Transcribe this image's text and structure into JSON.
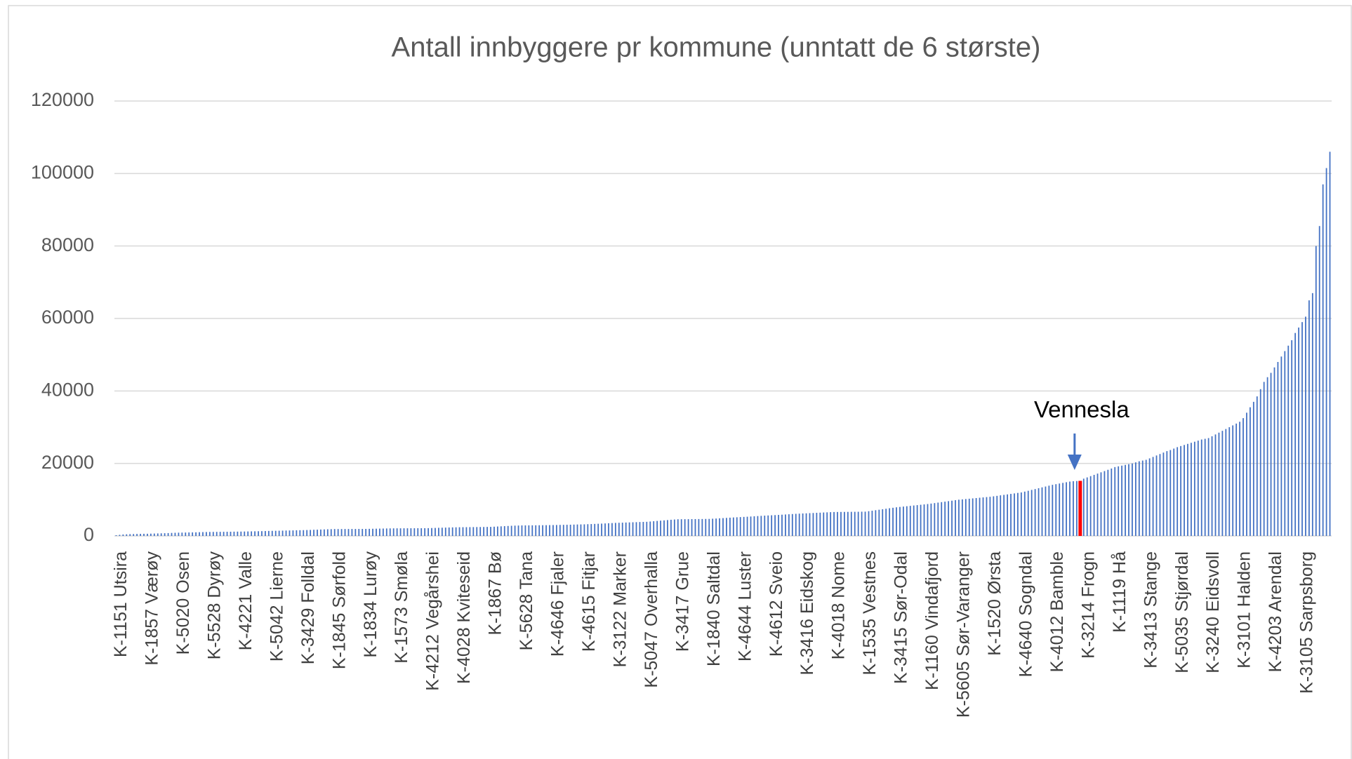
{
  "chart_data": {
    "type": "bar",
    "title": "Antall innbyggere pr kommune (unntatt de 6 største)",
    "color": "#4472c4",
    "grid": true,
    "ylim": [
      0,
      120000
    ],
    "yticks": [
      0,
      20000,
      40000,
      60000,
      80000,
      100000,
      120000
    ],
    "annotation": {
      "text": "Vennesla",
      "index": 278,
      "color": "#ff0000",
      "arrow_color": "#4472c4"
    },
    "categories": [
      "K-1151 Utsira",
      null,
      null,
      null,
      null,
      null,
      null,
      null,
      null,
      "K-1857 Værøy",
      null,
      null,
      null,
      null,
      null,
      null,
      null,
      null,
      "K-5020 Osen",
      null,
      null,
      null,
      null,
      null,
      null,
      null,
      null,
      "K-5528 Dyrøy",
      null,
      null,
      null,
      null,
      null,
      null,
      null,
      null,
      "K-4221 Valle",
      null,
      null,
      null,
      null,
      null,
      null,
      null,
      null,
      "K-5042 Lierne",
      null,
      null,
      null,
      null,
      null,
      null,
      null,
      null,
      "K-3429 Folldal",
      null,
      null,
      null,
      null,
      null,
      null,
      null,
      null,
      "K-1845 Sørfold",
      null,
      null,
      null,
      null,
      null,
      null,
      null,
      null,
      "K-1834 Lurøy",
      null,
      null,
      null,
      null,
      null,
      null,
      null,
      null,
      "K-1573 Smøla",
      null,
      null,
      null,
      null,
      null,
      null,
      null,
      null,
      "K-4212 Vegårshei",
      null,
      null,
      null,
      null,
      null,
      null,
      null,
      null,
      "K-4028 Kviteseid",
      null,
      null,
      null,
      null,
      null,
      null,
      null,
      null,
      "K-1867 Bø",
      null,
      null,
      null,
      null,
      null,
      null,
      null,
      null,
      "K-5628 Tana",
      null,
      null,
      null,
      null,
      null,
      null,
      null,
      null,
      "K-4646 Fjaler",
      null,
      null,
      null,
      null,
      null,
      null,
      null,
      null,
      "K-4615 Fitjar",
      null,
      null,
      null,
      null,
      null,
      null,
      null,
      null,
      "K-3122 Marker",
      null,
      null,
      null,
      null,
      null,
      null,
      null,
      null,
      "K-5047 Overhalla",
      null,
      null,
      null,
      null,
      null,
      null,
      null,
      null,
      "K-3417 Grue",
      null,
      null,
      null,
      null,
      null,
      null,
      null,
      null,
      "K-1840 Saltdal",
      null,
      null,
      null,
      null,
      null,
      null,
      null,
      null,
      "K-4644 Luster",
      null,
      null,
      null,
      null,
      null,
      null,
      null,
      null,
      "K-4612 Sveio",
      null,
      null,
      null,
      null,
      null,
      null,
      null,
      null,
      "K-3416 Eidskog",
      null,
      null,
      null,
      null,
      null,
      null,
      null,
      null,
      "K-4018 Nome",
      null,
      null,
      null,
      null,
      null,
      null,
      null,
      null,
      "K-1535 Vestnes",
      null,
      null,
      null,
      null,
      null,
      null,
      null,
      null,
      "K-3415 Sør-Odal",
      null,
      null,
      null,
      null,
      null,
      null,
      null,
      null,
      "K-1160 Vindafjord",
      null,
      null,
      null,
      null,
      null,
      null,
      null,
      null,
      "K-5605 Sør-Varanger",
      null,
      null,
      null,
      null,
      null,
      null,
      null,
      null,
      "K-1520 Ørsta",
      null,
      null,
      null,
      null,
      null,
      null,
      null,
      null,
      "K-4640 Sogndal",
      null,
      null,
      null,
      null,
      null,
      null,
      null,
      null,
      "K-4012 Bamble",
      null,
      null,
      null,
      null,
      null,
      null,
      null,
      null,
      "K-3214 Frogn",
      null,
      null,
      null,
      null,
      null,
      null,
      null,
      null,
      "K-1119 Hå",
      null,
      null,
      null,
      null,
      null,
      null,
      null,
      null,
      "K-3413 Stange",
      null,
      null,
      null,
      null,
      null,
      null,
      null,
      null,
      "K-5035 Stjørdal",
      null,
      null,
      null,
      null,
      null,
      null,
      null,
      null,
      "K-3240 Eidsvoll",
      null,
      null,
      null,
      null,
      null,
      null,
      null,
      null,
      "K-3101 Halden",
      null,
      null,
      null,
      null,
      null,
      null,
      null,
      null,
      "K-4203 Arendal",
      null,
      null,
      null,
      null,
      null,
      null,
      null,
      null,
      "K-3105 Sarpsborg",
      null,
      null,
      null,
      null,
      null,
      null,
      null,
      null
    ],
    "values": [
      200,
      300,
      400,
      450,
      500,
      520,
      550,
      570,
      590,
      600,
      630,
      660,
      690,
      720,
      750,
      790,
      830,
      870,
      900,
      920,
      940,
      960,
      980,
      1000,
      1030,
      1060,
      1080,
      1100,
      1110,
      1120,
      1130,
      1140,
      1150,
      1160,
      1180,
      1190,
      1200,
      1220,
      1240,
      1260,
      1280,
      1300,
      1320,
      1350,
      1380,
      1400,
      1420,
      1440,
      1460,
      1490,
      1510,
      1530,
      1560,
      1580,
      1600,
      1630,
      1660,
      1700,
      1730,
      1770,
      1800,
      1840,
      1870,
      1900,
      1900,
      1900,
      1910,
      1910,
      1920,
      1920,
      1930,
      1930,
      1940,
      1960,
      1980,
      2000,
      2020,
      2040,
      2060,
      2080,
      2090,
      2100,
      2100,
      2110,
      2110,
      2120,
      2120,
      2130,
      2130,
      2140,
      2150,
      2180,
      2210,
      2240,
      2270,
      2300,
      2330,
      2360,
      2380,
      2400,
      2410,
      2420,
      2430,
      2440,
      2450,
      2460,
      2470,
      2490,
      2500,
      2550,
      2600,
      2650,
      2700,
      2750,
      2800,
      2840,
      2870,
      2900,
      2910,
      2920,
      2930,
      2940,
      2950,
      2960,
      2970,
      2990,
      3000,
      3020,
      3040,
      3060,
      3080,
      3100,
      3130,
      3160,
      3180,
      3200,
      3240,
      3280,
      3320,
      3360,
      3400,
      3450,
      3500,
      3550,
      3600,
      3630,
      3660,
      3700,
      3730,
      3770,
      3800,
      3840,
      3870,
      3900,
      3980,
      4060,
      4140,
      4220,
      4300,
      4380,
      4460,
      4530,
      4600,
      4610,
      4620,
      4630,
      4640,
      4650,
      4660,
      4670,
      4690,
      4700,
      4750,
      4800,
      4860,
      4920,
      4980,
      5040,
      5100,
      5150,
      5200,
      5250,
      5300,
      5360,
      5420,
      5480,
      5540,
      5600,
      5650,
      5700,
      5750,
      5800,
      5860,
      5920,
      5980,
      6040,
      6100,
      6150,
      6200,
      6240,
      6290,
      6330,
      6380,
      6420,
      6470,
      6510,
      6560,
      6600,
      6610,
      6620,
      6630,
      6640,
      6650,
      6660,
      6670,
      6690,
      6700,
      6830,
      6960,
      7100,
      7230,
      7370,
      7500,
      7640,
      7770,
      7900,
      8000,
      8100,
      8200,
      8300,
      8400,
      8500,
      8600,
      8700,
      8800,
      8930,
      9060,
      9200,
      9330,
      9460,
      9600,
      9730,
      9870,
      10000,
      10090,
      10180,
      10270,
      10360,
      10450,
      10540,
      10630,
      10720,
      10800,
      10930,
      11060,
      11200,
      11330,
      11460,
      11600,
      11730,
      11870,
      12000,
      12230,
      12460,
      12700,
      12930,
      13160,
      13400,
      13630,
      13870,
      14100,
      14280,
      14460,
      14640,
      14820,
      15000,
      15100,
      15150,
      15200,
      15800,
      16150,
      16500,
      16850,
      17200,
      17550,
      17900,
      18250,
      18600,
      19000,
      19200,
      19400,
      19600,
      19800,
      20000,
      20300,
      20600,
      20800,
      21000,
      21400,
      21800,
      22200,
      22600,
      23000,
      23400,
      23700,
      24100,
      24500,
      24800,
      25100,
      25400,
      25700,
      26000,
      26300,
      26600,
      26800,
      27000,
      27500,
      28000,
      28500,
      29000,
      29500,
      30000,
      30500,
      31000,
      31500,
      32500,
      34000,
      35500,
      37000,
      38500,
      40500,
      42500,
      43800,
      45000,
      46500,
      48000,
      49500,
      51000,
      52500,
      54000,
      56000,
      57500,
      59000,
      60500,
      65000,
      67000,
      80000,
      85500,
      97000,
      101500,
      106000
    ]
  }
}
